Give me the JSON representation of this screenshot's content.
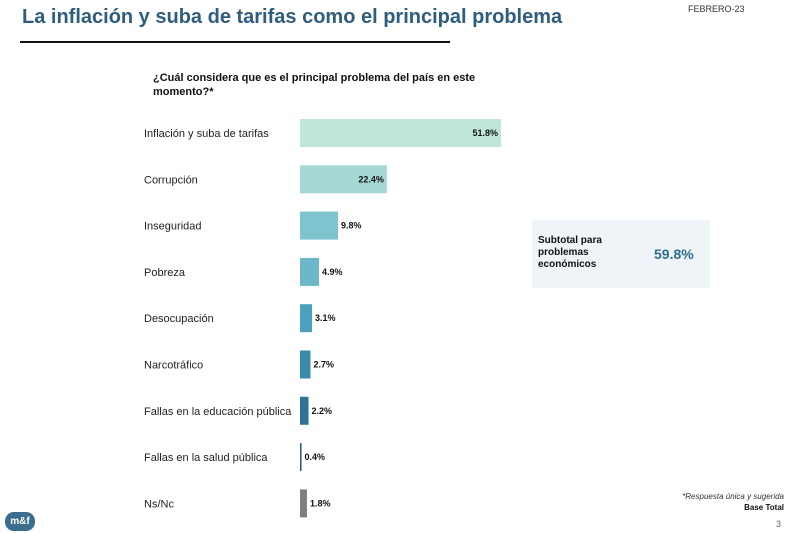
{
  "header": {
    "title": "La inflación y suba de tarifas como el principal problema",
    "date": "FEBRERO-23"
  },
  "chart_data": {
    "type": "bar",
    "orientation": "horizontal",
    "title": "¿Cuál considera que es el principal problema del país en este momento?*",
    "categories": [
      "Inflación y suba de tarifas",
      "Corrupción",
      "Inseguridad",
      "Pobreza",
      "Desocupación",
      "Narcotráfico",
      "Fallas en la educación pública",
      "Fallas en la salud pública",
      "Ns/Nc"
    ],
    "values": [
      51.8,
      22.4,
      9.8,
      4.9,
      3.1,
      2.7,
      2.2,
      0.4,
      1.8
    ],
    "value_labels": [
      "51.8%",
      "22.4%",
      "9.8%",
      "4.9%",
      "3.1%",
      "2.7%",
      "2.2%",
      "0.4%",
      "1.8%"
    ],
    "colors": [
      "#bfe6da",
      "#a5d8d4",
      "#7ec3cd",
      "#6cb8c9",
      "#4aa0bd",
      "#3b89ab",
      "#2f7296",
      "#2a5f80",
      "#7f7f7f"
    ],
    "xlim": [
      0,
      51.8
    ],
    "grid": false,
    "legend": "none"
  },
  "subtotal": {
    "label": "Subtotal para problemas económicos",
    "value": "59.8%"
  },
  "footer": {
    "note": "*Respuesta única y sugerida",
    "base": "Base Total",
    "page": "3",
    "logo": "m&f"
  }
}
